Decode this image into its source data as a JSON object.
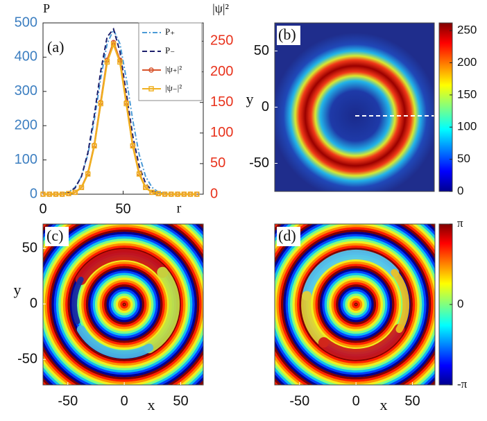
{
  "chart_data": [
    {
      "type": "line",
      "panel_label": "(a)",
      "y_label": "P",
      "y2_label": "|ψ|²",
      "x_label": "r",
      "x": [
        0,
        4,
        8,
        12,
        16,
        20,
        24,
        28,
        32,
        36,
        40,
        44,
        48,
        52,
        56,
        60,
        64,
        68,
        72,
        76,
        80,
        84,
        88,
        92,
        96
      ],
      "xlim": [
        0,
        100
      ],
      "xticks": [
        0,
        50
      ],
      "ylim": [
        0,
        500
      ],
      "yticks": [
        0,
        100,
        200,
        300,
        400,
        500
      ],
      "ycolor": "#3d7fc1",
      "y2lim": [
        0,
        280
      ],
      "y2ticks": [
        0,
        50,
        100,
        150,
        200,
        250
      ],
      "y2color": "#e8321c",
      "legend": "upper right",
      "series": [
        {
          "name": "P₊",
          "color": "#4a9ad6",
          "style": "dashdot",
          "values": [
            0,
            0,
            0,
            2,
            6,
            20,
            52,
            116,
            216,
            337,
            439,
            480,
            439,
            337,
            216,
            116,
            52,
            20,
            6,
            2,
            0,
            0,
            0,
            0,
            0
          ]
        },
        {
          "name": "P₋",
          "color": "#1c1f6b",
          "style": "dashed",
          "values": [
            0,
            0,
            0,
            1,
            5,
            18,
            52,
            121,
            230,
            359,
            459,
            482,
            416,
            294,
            171,
            82,
            32,
            10,
            3,
            1,
            0,
            0,
            0,
            0,
            0
          ]
        },
        {
          "name": "|ψ₊|²",
          "color": "#d8532b",
          "marker": "circle",
          "axis": "y2",
          "values": [
            0,
            0,
            0,
            0,
            1,
            3,
            11,
            34,
            80,
            150,
            219,
            248,
            219,
            150,
            80,
            34,
            11,
            3,
            1,
            0,
            0,
            0,
            0,
            0,
            0
          ]
        },
        {
          "name": "|ψ₋|²",
          "color": "#f0b020",
          "marker": "square",
          "axis": "y2",
          "values": [
            0,
            0,
            0,
            0,
            1,
            3,
            11,
            33,
            79,
            148,
            216,
            245,
            216,
            148,
            79,
            33,
            11,
            3,
            1,
            0,
            0,
            0,
            0,
            0,
            0
          ]
        }
      ]
    },
    {
      "type": "heatmap",
      "panel_label": "(b)",
      "y_label": "y",
      "ylim": [
        -75,
        75
      ],
      "yticks": [
        -50,
        0,
        50
      ],
      "colorbar": {
        "lim": [
          0,
          262
        ],
        "ticks": [
          0,
          50,
          100,
          150,
          200,
          250
        ]
      }
    },
    {
      "type": "heatmap",
      "panel_label": "(c)",
      "x_label": "x",
      "y_label": "y",
      "xlim": [
        -72,
        70
      ],
      "xticks": [
        -50,
        0,
        50
      ],
      "ylim": [
        -73,
        72
      ],
      "yticks": [
        -50,
        0,
        50
      ]
    },
    {
      "type": "heatmap",
      "panel_label": "(d)",
      "x_label": "x",
      "xlim": [
        -72,
        70
      ],
      "xticks": [
        -50,
        0,
        50
      ],
      "colorbar": {
        "lim": [
          -3.1416,
          3.1416
        ],
        "ticks": [
          {
            "value": -3.1416,
            "label": "-π"
          },
          0,
          {
            "value": 3.1416,
            "label": "π"
          }
        ]
      }
    }
  ]
}
